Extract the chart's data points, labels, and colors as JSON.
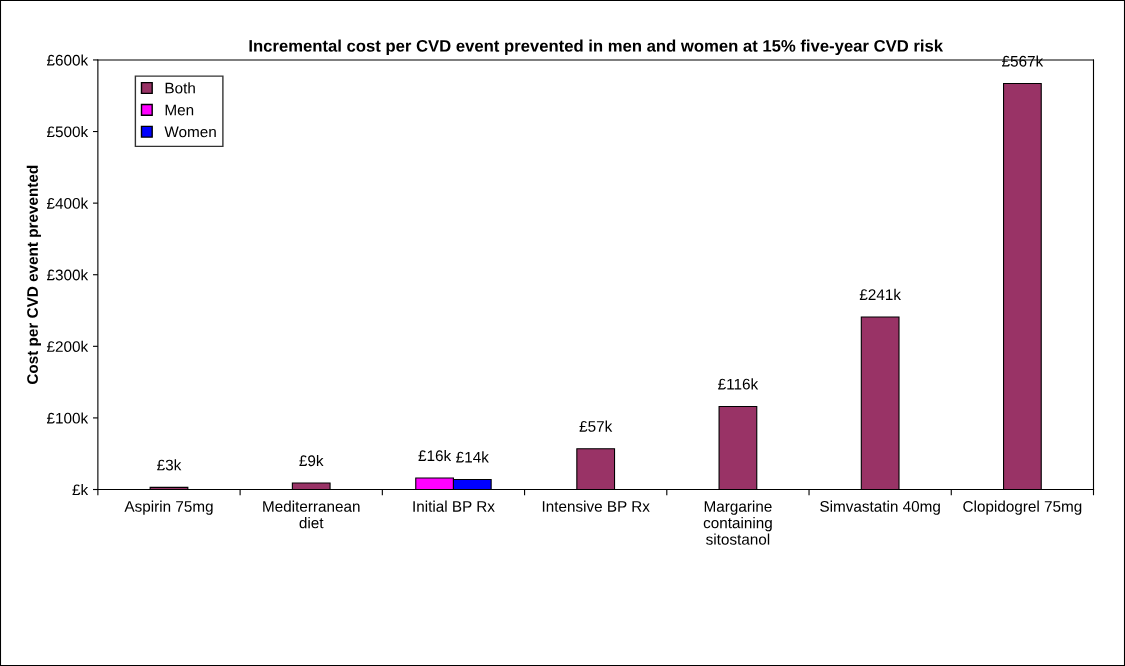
{
  "chart_data": {
    "type": "bar",
    "title": "Incremental cost per CVD event prevented in men and women at 15% five-year CVD risk",
    "ylabel": "Cost per CVD event prevented",
    "categories": [
      "Aspirin 75mg",
      "Mediterranean\ndiet",
      "Initial BP Rx",
      "Intensive BP Rx",
      "Margarine\ncontaining\nsitostanol",
      "Simvastatin 40mg",
      "Clopidogrel 75mg"
    ],
    "series": [
      {
        "name": "Both",
        "color": "#993366",
        "values": [
          3,
          9,
          null,
          57,
          116,
          241,
          567
        ],
        "value_labels": [
          "£3k",
          "£9k",
          null,
          "£57k",
          "£116k",
          "£241k",
          "£567k"
        ]
      },
      {
        "name": "Men",
        "color": "#ff00ff",
        "values": [
          null,
          null,
          16,
          null,
          null,
          null,
          null
        ],
        "value_labels": [
          null,
          null,
          "£16k",
          null,
          null,
          null,
          null
        ]
      },
      {
        "name": "Women",
        "color": "#0000ff",
        "values": [
          null,
          null,
          14,
          null,
          null,
          null,
          null
        ],
        "value_labels": [
          null,
          null,
          "£14k",
          null,
          null,
          null,
          null
        ]
      }
    ],
    "ylim": [
      0,
      600
    ],
    "yticks": [
      {
        "value": 0,
        "label": "£k"
      },
      {
        "value": 100,
        "label": "£100k"
      },
      {
        "value": 200,
        "label": "£200k"
      },
      {
        "value": 300,
        "label": "£300k"
      },
      {
        "value": 400,
        "label": "£400k"
      },
      {
        "value": 500,
        "label": "£500k"
      },
      {
        "value": 600,
        "label": "£600k"
      }
    ],
    "legend": "top left",
    "grid": false
  }
}
